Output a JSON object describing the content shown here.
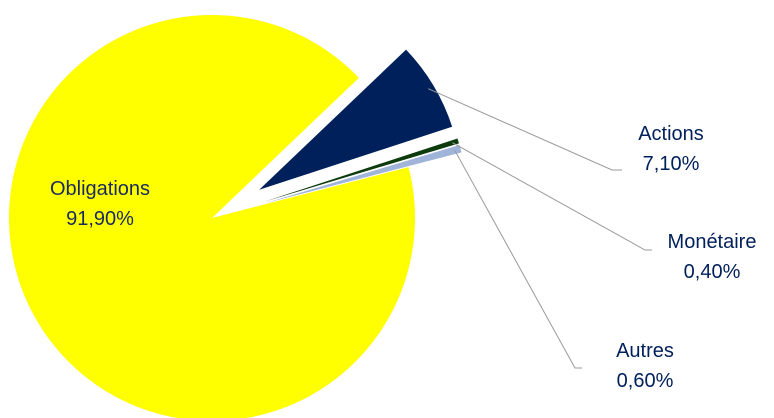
{
  "chart_data": {
    "type": "pie",
    "title": "",
    "series": [
      {
        "name": "",
        "slices": [
          {
            "label": "Obligations",
            "value": 91.9,
            "value_label": "91,90%",
            "color": "#ffff00",
            "label_color": "#1a2a5c",
            "exploded": false
          },
          {
            "label": "Actions",
            "value": 7.1,
            "value_label": "7,10%",
            "color": "#00205b",
            "label_color": "#00205b",
            "exploded": true
          },
          {
            "label": "Monétaire",
            "value": 0.4,
            "value_label": "0,40%",
            "color": "#0e3b0e",
            "label_color": "#00205b",
            "exploded": true
          },
          {
            "label": "Autres",
            "value": 0.6,
            "value_label": "0,60%",
            "color": "#9fb4d8",
            "label_color": "#00205b",
            "exploded": true
          }
        ]
      }
    ],
    "legend": "none",
    "leader_line_color": "#999999"
  }
}
